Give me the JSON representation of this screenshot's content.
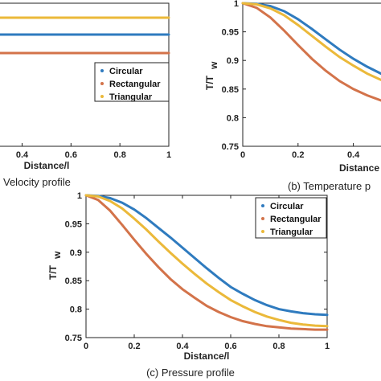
{
  "colors": {
    "circular": "#2f7bbf",
    "rectangular": "#d3734a",
    "triangular": "#ebb93a"
  },
  "chart_data": [
    {
      "type": "line",
      "caption": "Velocity profile",
      "xlabel": "Distance/l",
      "ylabel": "",
      "xlim": [
        0.2,
        1
      ],
      "x_ticks": [
        "0.4",
        "0.6",
        "0.8",
        "1"
      ],
      "y_ticks": [],
      "legend": {
        "placement": "center-right",
        "entries": [
          "Circular",
          "Rectangular",
          "Triangular"
        ],
        "marker": "dot"
      },
      "series": [
        {
          "name": "Triangular",
          "x": [
            0.2,
            1
          ],
          "y": [
            1,
            1
          ]
        },
        {
          "name": "Circular",
          "x": [
            0.2,
            1
          ],
          "y": [
            0.85,
            0.85
          ]
        },
        {
          "name": "Rectangular",
          "x": [
            0.2,
            1
          ],
          "y": [
            0.66,
            0.66
          ]
        }
      ]
    },
    {
      "type": "line",
      "caption": "(b) Temperature p",
      "xlabel": "Distance",
      "ylabel": "T/T",
      "ylabel_sub": "w",
      "xlim": [
        0,
        0.5
      ],
      "ylim": [
        0.75,
        1
      ],
      "x_ticks": [
        "0",
        "0.2",
        "0.4"
      ],
      "y_ticks": [
        "0.75",
        "0.8",
        "0.85",
        "0.9",
        "0.95",
        "1"
      ],
      "series": [
        {
          "name": "Circular",
          "x": [
            0,
            0.05,
            0.1,
            0.15,
            0.2,
            0.25,
            0.3,
            0.35,
            0.4,
            0.45,
            0.5
          ],
          "y": [
            1,
            0.999,
            0.995,
            0.986,
            0.972,
            0.955,
            0.937,
            0.919,
            0.903,
            0.889,
            0.877
          ]
        },
        {
          "name": "Rectangular",
          "x": [
            0,
            0.05,
            0.1,
            0.15,
            0.2,
            0.25,
            0.3,
            0.35,
            0.4,
            0.45,
            0.5
          ],
          "y": [
            1,
            0.992,
            0.975,
            0.952,
            0.927,
            0.903,
            0.882,
            0.864,
            0.85,
            0.839,
            0.83
          ]
        },
        {
          "name": "Triangular",
          "x": [
            0,
            0.05,
            0.1,
            0.15,
            0.2,
            0.25,
            0.3,
            0.35,
            0.4,
            0.45,
            0.5
          ],
          "y": [
            1,
            0.998,
            0.991,
            0.979,
            0.962,
            0.943,
            0.924,
            0.906,
            0.891,
            0.877,
            0.866
          ]
        }
      ]
    },
    {
      "type": "line",
      "caption": "(c) Pressure profile",
      "xlabel": "Distance/l",
      "ylabel": "T/T",
      "ylabel_sub": "w",
      "xlim": [
        0,
        1
      ],
      "ylim": [
        0.75,
        1
      ],
      "x_ticks": [
        "0",
        "0.2",
        "0.4",
        "0.6",
        "0.8",
        "1"
      ],
      "y_ticks": [
        "0.75",
        "0.8",
        "0.85",
        "0.9",
        "0.95",
        "1"
      ],
      "legend": {
        "placement": "top-right",
        "entries": [
          "Circular",
          "Rectangular",
          "Triangular"
        ],
        "marker": "dot"
      },
      "series": [
        {
          "name": "Circular",
          "x": [
            0,
            0.05,
            0.1,
            0.15,
            0.2,
            0.25,
            0.3,
            0.35,
            0.4,
            0.45,
            0.5,
            0.55,
            0.6,
            0.65,
            0.7,
            0.75,
            0.8,
            0.85,
            0.9,
            0.95,
            1
          ],
          "y": [
            1,
            0.999,
            0.995,
            0.987,
            0.975,
            0.96,
            0.943,
            0.926,
            0.908,
            0.89,
            0.872,
            0.855,
            0.839,
            0.827,
            0.816,
            0.807,
            0.8,
            0.796,
            0.793,
            0.791,
            0.79
          ]
        },
        {
          "name": "Rectangular",
          "x": [
            0,
            0.05,
            0.1,
            0.15,
            0.2,
            0.25,
            0.3,
            0.35,
            0.4,
            0.45,
            0.5,
            0.55,
            0.6,
            0.65,
            0.7,
            0.75,
            0.8,
            0.85,
            0.9,
            0.95,
            1
          ],
          "y": [
            1,
            0.992,
            0.973,
            0.948,
            0.922,
            0.897,
            0.874,
            0.853,
            0.835,
            0.82,
            0.806,
            0.795,
            0.786,
            0.779,
            0.774,
            0.77,
            0.768,
            0.766,
            0.765,
            0.764,
            0.764
          ]
        },
        {
          "name": "Triangular",
          "x": [
            0,
            0.05,
            0.1,
            0.15,
            0.2,
            0.25,
            0.3,
            0.35,
            0.4,
            0.45,
            0.5,
            0.55,
            0.6,
            0.65,
            0.7,
            0.75,
            0.8,
            0.85,
            0.9,
            0.95,
            1
          ],
          "y": [
            1,
            0.998,
            0.99,
            0.977,
            0.959,
            0.94,
            0.919,
            0.899,
            0.88,
            0.862,
            0.845,
            0.83,
            0.816,
            0.805,
            0.795,
            0.787,
            0.781,
            0.776,
            0.773,
            0.771,
            0.77
          ]
        }
      ]
    }
  ]
}
